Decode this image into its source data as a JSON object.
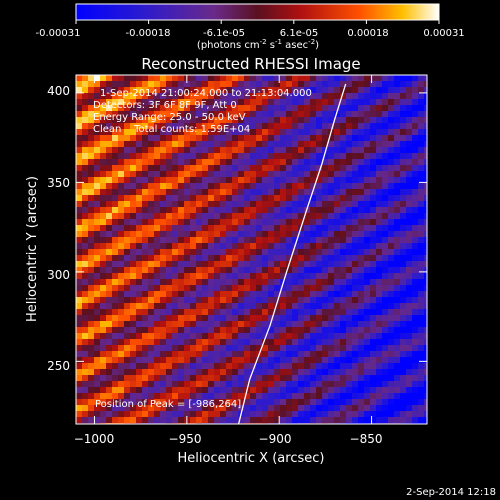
{
  "colorbar": {
    "min_label": "-0.00031",
    "tick_labels": [
      "-0.00031",
      "-0.00018",
      "-6.1e-05",
      "6.1e-05",
      "0.00018",
      "0.00031"
    ],
    "unit_label": "(photons cm^-2 s^-1 asec^-2)",
    "colors": {
      "low": "#0000ff",
      "mid_low": "#6a2a8a",
      "mid": "#6a1010",
      "mid_high": "#ff2a00",
      "high": "#ffffff"
    }
  },
  "chart_data": {
    "type": "heatmap",
    "title": "Reconstructed RHESSI Image",
    "xlabel": "Heliocentric X (arcsec)",
    "ylabel": "Heliocentric Y (arcsec)",
    "xlim": [
      -1010,
      -820
    ],
    "ylim": [
      215,
      410
    ],
    "x_ticks": [
      -1000,
      -950,
      -900,
      -850
    ],
    "x_tick_labels": [
      "−1000",
      "−950",
      "−900",
      "−850"
    ],
    "y_ticks": [
      250,
      300,
      350,
      400
    ],
    "y_tick_labels": [
      "250",
      "300",
      "350",
      "400"
    ],
    "annotations": {
      "time_range": "1-Sep-2014 21:00:24.000 to 21:13:04.000",
      "detectors": "Detectors: 3F 6F 8F 9F, Att 0",
      "energy": "Energy Range: 25.0 - 50.0 keV",
      "clean": "Clean    Total counts: 1.59E+04",
      "peak": "Position of Peak = [-986,264]"
    },
    "peak": {
      "x": -986,
      "y": 264
    },
    "limb_curve": {
      "x": [
        -922,
        -916,
        -905,
        -896,
        -885,
        -877,
        -870,
        -864
      ],
      "y": [
        215,
        240,
        270,
        300,
        335,
        360,
        385,
        405
      ]
    }
  },
  "footer": {
    "timestamp": "2-Sep-2014 12:18"
  }
}
